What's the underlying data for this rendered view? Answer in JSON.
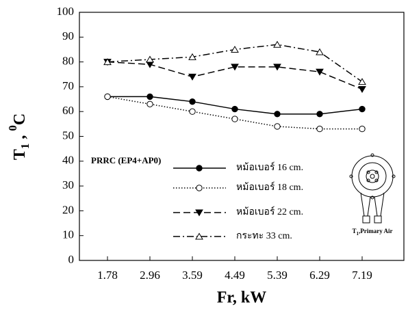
{
  "chart_data": {
    "type": "line",
    "x_label": "Fr, kW",
    "y_label_parts": [
      "T",
      "1",
      " , ",
      "0",
      "C"
    ],
    "legend_title": "PRRC (EP4+AP0)",
    "annotation_parts": [
      "T",
      "1",
      ",Primary Air"
    ],
    "categories": [
      "1.78",
      "2.96",
      "3.59",
      "4.49",
      "5.39",
      "6.29",
      "7.19"
    ],
    "series": [
      {
        "name": "หม้อเบอร์ 16 cm.",
        "color": "#000000",
        "dash": "solid",
        "marker": "filled-circle",
        "values": [
          66,
          66,
          64,
          61,
          59,
          59,
          61
        ]
      },
      {
        "name": "หม้อเบอร์ 18 cm.",
        "color": "#000000",
        "dash": "dotted",
        "marker": "open-circle",
        "values": [
          66,
          63,
          60,
          57,
          54,
          53,
          53
        ]
      },
      {
        "name": "หม้อเบอร์ 22 cm.",
        "color": "#000000",
        "dash": "dashed",
        "marker": "filled-triangle-down",
        "values": [
          80,
          79,
          74,
          78,
          78,
          76,
          69
        ]
      },
      {
        "name": "กระทะ 33 cm.",
        "color": "#000000",
        "dash": "dashdot",
        "marker": "open-triangle-up",
        "values": [
          80,
          81,
          82,
          85,
          87,
          84,
          72
        ]
      }
    ],
    "ylim": [
      0,
      100
    ],
    "yticks": [
      0,
      10,
      20,
      30,
      40,
      50,
      60,
      70,
      80,
      90,
      100
    ],
    "grid": false
  }
}
